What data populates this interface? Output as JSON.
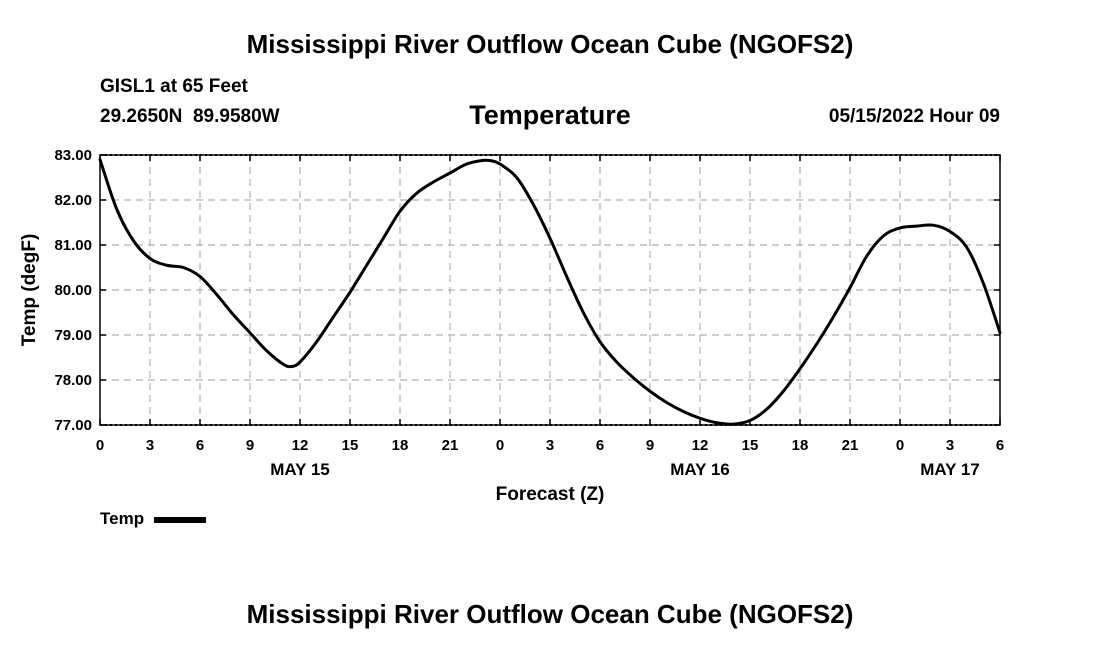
{
  "page": {
    "title": "Mississippi River Outflow Ocean Cube (NGOFS2)",
    "title_repeat": "Mississippi River Outflow Ocean Cube (NGOFS2)",
    "station": "GISL1 at 65 Feet",
    "coords": "29.2650N  89.9580W",
    "subtitle": "Temperature",
    "datestamp": "05/15/2022 Hour 09"
  },
  "legend": {
    "label": "Temp"
  },
  "chart_data": {
    "type": "line",
    "title": "Temperature",
    "xlabel": "Forecast (Z)",
    "ylabel": "Temp (degF)",
    "xlim": [
      0,
      54
    ],
    "ylim": [
      77,
      83
    ],
    "grid": true,
    "legend_position": "bottom-left",
    "x_ticks": [
      0,
      3,
      6,
      9,
      12,
      15,
      18,
      21,
      24,
      27,
      30,
      33,
      36,
      39,
      42,
      45,
      48,
      51,
      54
    ],
    "x_tick_labels": [
      "0",
      "3",
      "6",
      "9",
      "12",
      "15",
      "18",
      "21",
      "0",
      "3",
      "6",
      "9",
      "12",
      "15",
      "18",
      "21",
      "0",
      "3",
      "6"
    ],
    "y_ticks": [
      77,
      78,
      79,
      80,
      81,
      82,
      83
    ],
    "y_tick_labels": [
      "77.00",
      "78.00",
      "79.00",
      "80.00",
      "81.00",
      "82.00",
      "83.00"
    ],
    "date_labels": [
      {
        "x": 12,
        "label": "MAY 15"
      },
      {
        "x": 36,
        "label": "MAY 16"
      },
      {
        "x": 51,
        "label": "MAY 17"
      }
    ],
    "series": [
      {
        "name": "Temp",
        "color": "#000000",
        "x": [
          0,
          1,
          2,
          3,
          4,
          5,
          6,
          7,
          8,
          9,
          10,
          11,
          11.5,
          12,
          13,
          14,
          15,
          16,
          17,
          18,
          19,
          20,
          21,
          22,
          23,
          23.5,
          24,
          25,
          26,
          27,
          28,
          29,
          30,
          31,
          32,
          33,
          34,
          35,
          36,
          37,
          38,
          39,
          40,
          41,
          42,
          43,
          44,
          45,
          46,
          47,
          48,
          49,
          50,
          51,
          52,
          53,
          54
        ],
        "y": [
          82.9,
          81.8,
          81.1,
          80.7,
          80.55,
          80.5,
          80.3,
          79.9,
          79.45,
          79.05,
          78.65,
          78.35,
          78.3,
          78.4,
          78.85,
          79.4,
          79.95,
          80.55,
          81.15,
          81.75,
          82.15,
          82.4,
          82.6,
          82.8,
          82.88,
          82.87,
          82.8,
          82.5,
          81.9,
          81.15,
          80.3,
          79.5,
          78.85,
          78.4,
          78.05,
          77.75,
          77.5,
          77.3,
          77.15,
          77.05,
          77.02,
          77.1,
          77.35,
          77.75,
          78.25,
          78.8,
          79.4,
          80.05,
          80.75,
          81.2,
          81.38,
          81.42,
          81.44,
          81.3,
          80.95,
          80.15,
          79.05
        ]
      }
    ]
  }
}
